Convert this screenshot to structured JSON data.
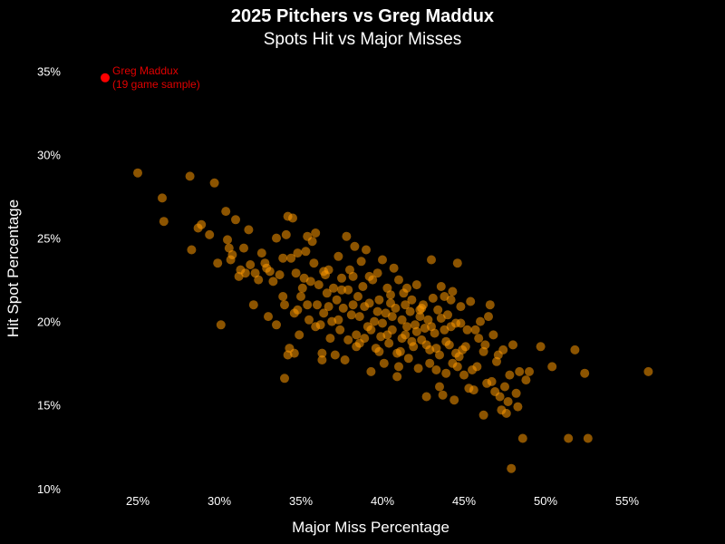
{
  "chart_data": {
    "type": "scatter",
    "title": "2025 Pitchers vs Greg Maddux",
    "subtitle": "Spots Hit vs Major Misses",
    "xlabel": "Major Miss Percentage",
    "ylabel": "Hit Spot Percentage",
    "xlim": [
      20.5,
      58.5
    ],
    "ylim": [
      9.5,
      36
    ],
    "x_ticks": [
      25,
      30,
      35,
      40,
      45,
      50,
      55
    ],
    "x_tick_labels": [
      "25%",
      "30%",
      "35%",
      "40%",
      "45%",
      "50%",
      "55%"
    ],
    "y_ticks": [
      10,
      15,
      20,
      25,
      30,
      35
    ],
    "y_tick_labels": [
      "10%",
      "15%",
      "20%",
      "25%",
      "30%",
      "35%"
    ],
    "grid": false,
    "colors": {
      "background": "#000000",
      "pitchers": "#ff9900",
      "maddux": "#ff0000"
    },
    "series": [
      {
        "name": "2025 Pitchers",
        "points": [
          [
            25.0,
            28.9
          ],
          [
            26.5,
            27.4
          ],
          [
            26.6,
            26.0
          ],
          [
            28.2,
            28.7
          ],
          [
            28.3,
            24.3
          ],
          [
            28.7,
            25.6
          ],
          [
            28.9,
            25.8
          ],
          [
            29.4,
            25.2
          ],
          [
            29.7,
            28.3
          ],
          [
            29.9,
            23.5
          ],
          [
            30.1,
            19.8
          ],
          [
            30.4,
            26.6
          ],
          [
            30.5,
            24.9
          ],
          [
            30.6,
            24.4
          ],
          [
            30.8,
            24.0
          ],
          [
            31.0,
            26.1
          ],
          [
            31.3,
            23.1
          ],
          [
            31.5,
            24.4
          ],
          [
            31.6,
            22.9
          ],
          [
            31.8,
            25.5
          ],
          [
            31.9,
            23.4
          ],
          [
            32.1,
            21.0
          ],
          [
            32.2,
            22.9
          ],
          [
            32.4,
            22.5
          ],
          [
            32.6,
            24.1
          ],
          [
            32.8,
            23.5
          ],
          [
            33.0,
            20.3
          ],
          [
            33.1,
            23.0
          ],
          [
            33.3,
            22.4
          ],
          [
            33.5,
            25.0
          ],
          [
            33.7,
            22.8
          ],
          [
            33.9,
            21.5
          ],
          [
            34.0,
            21.0
          ],
          [
            34.1,
            25.2
          ],
          [
            34.2,
            26.3
          ],
          [
            34.4,
            23.8
          ],
          [
            34.5,
            26.2
          ],
          [
            34.6,
            20.5
          ],
          [
            34.7,
            22.9
          ],
          [
            34.8,
            24.1
          ],
          [
            34.2,
            18.0
          ],
          [
            34.0,
            16.6
          ],
          [
            34.3,
            18.4
          ],
          [
            34.6,
            18.1
          ],
          [
            34.9,
            19.2
          ],
          [
            35.0,
            21.5
          ],
          [
            35.2,
            22.6
          ],
          [
            35.3,
            24.2
          ],
          [
            35.4,
            25.1
          ],
          [
            35.5,
            20.1
          ],
          [
            35.6,
            22.4
          ],
          [
            35.7,
            24.8
          ],
          [
            35.8,
            23.5
          ],
          [
            35.9,
            25.3
          ],
          [
            36.0,
            21.0
          ],
          [
            36.1,
            22.2
          ],
          [
            36.2,
            19.8
          ],
          [
            36.3,
            17.7
          ],
          [
            36.4,
            20.5
          ],
          [
            36.5,
            22.8
          ],
          [
            36.6,
            21.7
          ],
          [
            36.7,
            23.1
          ],
          [
            36.8,
            19.0
          ],
          [
            36.9,
            20.0
          ],
          [
            37.0,
            22.0
          ],
          [
            37.1,
            18.0
          ],
          [
            37.2,
            21.3
          ],
          [
            37.3,
            23.9
          ],
          [
            37.4,
            19.5
          ],
          [
            37.5,
            22.6
          ],
          [
            37.6,
            20.8
          ],
          [
            37.7,
            17.7
          ],
          [
            37.8,
            25.1
          ],
          [
            37.9,
            21.9
          ],
          [
            38.0,
            23.1
          ],
          [
            38.1,
            20.4
          ],
          [
            38.2,
            22.7
          ],
          [
            38.3,
            24.5
          ],
          [
            38.4,
            19.2
          ],
          [
            38.5,
            21.5
          ],
          [
            38.6,
            18.7
          ],
          [
            38.7,
            23.6
          ],
          [
            38.8,
            22.1
          ],
          [
            38.9,
            20.9
          ],
          [
            39.0,
            24.3
          ],
          [
            39.1,
            19.7
          ],
          [
            39.2,
            21.1
          ],
          [
            39.3,
            17.0
          ],
          [
            39.4,
            22.5
          ],
          [
            39.5,
            20.0
          ],
          [
            39.6,
            18.4
          ],
          [
            39.7,
            22.9
          ],
          [
            39.8,
            21.3
          ],
          [
            39.9,
            19.1
          ],
          [
            40.0,
            23.7
          ],
          [
            40.1,
            17.5
          ],
          [
            40.2,
            20.5
          ],
          [
            40.3,
            22.0
          ],
          [
            40.4,
            18.7
          ],
          [
            40.5,
            21.6
          ],
          [
            40.6,
            19.5
          ],
          [
            40.7,
            23.2
          ],
          [
            40.8,
            20.8
          ],
          [
            40.9,
            16.7
          ],
          [
            41.0,
            22.5
          ],
          [
            41.1,
            18.2
          ],
          [
            41.2,
            20.1
          ],
          [
            41.3,
            21.7
          ],
          [
            41.4,
            19.2
          ],
          [
            41.5,
            22.0
          ],
          [
            41.6,
            17.8
          ],
          [
            41.7,
            20.6
          ],
          [
            41.8,
            21.3
          ],
          [
            41.9,
            18.5
          ],
          [
            42.0,
            19.8
          ],
          [
            42.1,
            22.2
          ],
          [
            42.2,
            17.2
          ],
          [
            42.3,
            20.3
          ],
          [
            42.4,
            18.9
          ],
          [
            42.5,
            21.0
          ],
          [
            42.6,
            19.6
          ],
          [
            42.7,
            15.5
          ],
          [
            42.8,
            20.1
          ],
          [
            42.9,
            18.3
          ],
          [
            43.0,
            23.7
          ],
          [
            43.1,
            21.4
          ],
          [
            43.2,
            19.3
          ],
          [
            43.3,
            17.1
          ],
          [
            43.4,
            20.7
          ],
          [
            43.5,
            18.0
          ],
          [
            43.6,
            22.1
          ],
          [
            43.7,
            15.6
          ],
          [
            43.8,
            19.5
          ],
          [
            43.9,
            16.9
          ],
          [
            44.0,
            20.4
          ],
          [
            44.1,
            18.6
          ],
          [
            44.2,
            21.3
          ],
          [
            44.3,
            17.5
          ],
          [
            44.4,
            15.3
          ],
          [
            44.5,
            19.9
          ],
          [
            44.6,
            23.5
          ],
          [
            44.7,
            17.9
          ],
          [
            44.8,
            20.9
          ],
          [
            44.9,
            18.3
          ],
          [
            45.0,
            16.8
          ],
          [
            45.2,
            19.5
          ],
          [
            45.4,
            21.2
          ],
          [
            45.6,
            15.9
          ],
          [
            45.8,
            17.3
          ],
          [
            46.0,
            20.0
          ],
          [
            46.2,
            18.2
          ],
          [
            46.4,
            16.3
          ],
          [
            46.6,
            21.0
          ],
          [
            46.8,
            19.2
          ],
          [
            47.0,
            17.6
          ],
          [
            47.2,
            15.5
          ],
          [
            47.4,
            18.3
          ],
          [
            47.6,
            14.5
          ],
          [
            47.8,
            16.8
          ],
          [
            48.0,
            18.6
          ],
          [
            48.2,
            15.7
          ],
          [
            48.4,
            17.0
          ],
          [
            48.6,
            13.0
          ],
          [
            48.8,
            16.5
          ],
          [
            47.9,
            11.2
          ],
          [
            46.2,
            14.4
          ],
          [
            47.3,
            14.7
          ],
          [
            49.7,
            18.5
          ],
          [
            50.4,
            17.3
          ],
          [
            51.4,
            13.0
          ],
          [
            51.8,
            18.3
          ],
          [
            52.4,
            16.9
          ],
          [
            52.6,
            13.0
          ],
          [
            56.3,
            17.0
          ],
          [
            33.5,
            19.8
          ],
          [
            34.8,
            20.7
          ],
          [
            35.1,
            22.0
          ],
          [
            35.9,
            19.7
          ],
          [
            36.3,
            18.1
          ],
          [
            36.7,
            20.9
          ],
          [
            37.3,
            20.1
          ],
          [
            37.9,
            18.9
          ],
          [
            38.2,
            21.0
          ],
          [
            38.6,
            20.3
          ],
          [
            38.9,
            19.0
          ],
          [
            39.3,
            19.5
          ],
          [
            39.7,
            20.6
          ],
          [
            40.0,
            19.9
          ],
          [
            40.3,
            19.2
          ],
          [
            40.6,
            20.3
          ],
          [
            40.9,
            18.1
          ],
          [
            41.2,
            19.0
          ],
          [
            41.5,
            19.7
          ],
          [
            41.8,
            18.8
          ],
          [
            42.1,
            19.4
          ],
          [
            42.4,
            20.8
          ],
          [
            42.7,
            18.6
          ],
          [
            43.0,
            19.7
          ],
          [
            43.3,
            18.4
          ],
          [
            43.6,
            20.2
          ],
          [
            43.9,
            18.8
          ],
          [
            44.2,
            19.7
          ],
          [
            44.5,
            18.1
          ],
          [
            44.8,
            19.9
          ],
          [
            45.1,
            18.5
          ],
          [
            45.5,
            17.1
          ],
          [
            45.9,
            19.0
          ],
          [
            46.3,
            18.6
          ],
          [
            46.7,
            16.4
          ],
          [
            47.1,
            18.0
          ],
          [
            47.5,
            16.1
          ],
          [
            39.2,
            22.7
          ],
          [
            40.5,
            21.1
          ],
          [
            41.4,
            21.0
          ],
          [
            42.3,
            20.7
          ],
          [
            43.8,
            21.5
          ],
          [
            44.3,
            21.8
          ],
          [
            45.7,
            19.5
          ],
          [
            46.5,
            20.3
          ],
          [
            47.7,
            15.2
          ],
          [
            49.0,
            17.0
          ],
          [
            44.6,
            17.3
          ],
          [
            42.9,
            17.5
          ],
          [
            41.0,
            17.3
          ],
          [
            39.8,
            18.2
          ],
          [
            38.4,
            18.5
          ],
          [
            37.5,
            21.9
          ],
          [
            36.4,
            23.0
          ],
          [
            35.4,
            21.0
          ],
          [
            33.9,
            23.8
          ],
          [
            32.9,
            23.2
          ],
          [
            31.2,
            22.7
          ],
          [
            30.7,
            23.7
          ],
          [
            43.5,
            16.1
          ],
          [
            45.3,
            16.0
          ],
          [
            46.9,
            15.8
          ],
          [
            48.3,
            14.9
          ]
        ]
      },
      {
        "name": "Greg Maddux",
        "label": "Greg Maddux",
        "label2": "(19 game sample)",
        "points": [
          [
            23.0,
            34.6
          ]
        ]
      }
    ]
  }
}
